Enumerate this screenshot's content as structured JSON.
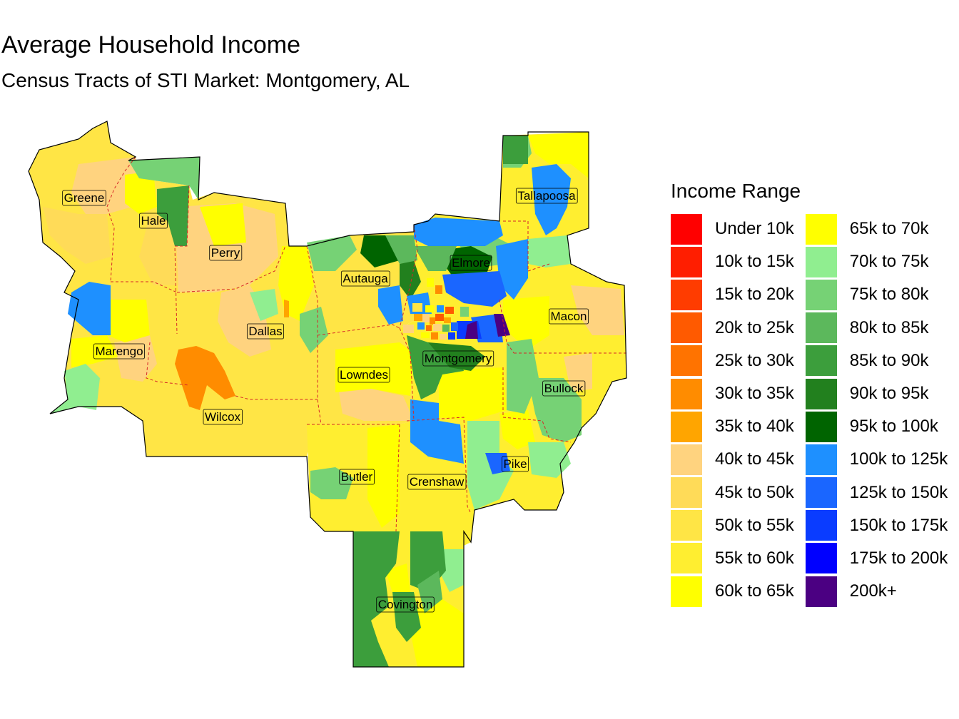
{
  "title": "Average Household Income",
  "subtitle": "Census Tracts of STI Market: Montgomery, AL",
  "legend": {
    "title": "Income Range",
    "col1": [
      {
        "label": "Under 10k",
        "color": "#ff0000"
      },
      {
        "label": "10k to 15k",
        "color": "#ff1e00"
      },
      {
        "label": "15k to 20k",
        "color": "#ff3c00"
      },
      {
        "label": "20k to 25k",
        "color": "#ff5a00"
      },
      {
        "label": "25k to 30k",
        "color": "#ff7300"
      },
      {
        "label": "30k to 35k",
        "color": "#ff8c00"
      },
      {
        "label": "35k to 40k",
        "color": "#ffa500"
      },
      {
        "label": "40k to 45k",
        "color": "#ffd37f"
      },
      {
        "label": "45k to 50k",
        "color": "#ffdb58"
      },
      {
        "label": "50k to 55k",
        "color": "#ffe545"
      },
      {
        "label": "55k to 60k",
        "color": "#ffee30"
      },
      {
        "label": "60k to 65k",
        "color": "#ffff00"
      }
    ],
    "col2": [
      {
        "label": "65k to 70k",
        "color": "#ffff00"
      },
      {
        "label": "70k to 75k",
        "color": "#90ee90"
      },
      {
        "label": "75k to 80k",
        "color": "#76d275"
      },
      {
        "label": "80k to 85k",
        "color": "#5cb85c"
      },
      {
        "label": "85k to 90k",
        "color": "#3c9e3c"
      },
      {
        "label": "90k to 95k",
        "color": "#22801e"
      },
      {
        "label": "95k to 100k",
        "color": "#006400"
      },
      {
        "label": "100k to 125k",
        "color": "#1e90ff"
      },
      {
        "label": "125k to 150k",
        "color": "#1a66ff"
      },
      {
        "label": "150k to 175k",
        "color": "#0a3cff"
      },
      {
        "label": "175k to 200k",
        "color": "#0000ff"
      },
      {
        "label": "200k+",
        "color": "#4b0082"
      }
    ]
  },
  "counties": [
    "Greene",
    "Hale",
    "Perry",
    "Autauga",
    "Elmore",
    "Tallapoosa",
    "Macon",
    "Dallas",
    "Marengo",
    "Montgomery",
    "Lowndes",
    "Bullock",
    "Wilcox",
    "Pike",
    "Butler",
    "Crenshaw",
    "Covington"
  ]
}
